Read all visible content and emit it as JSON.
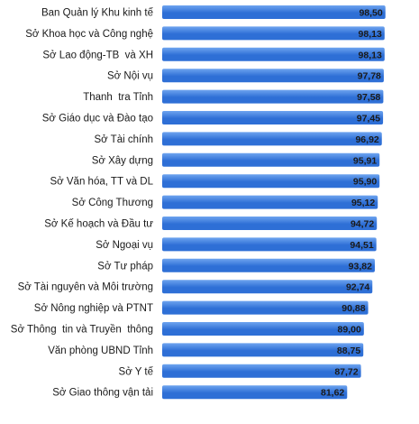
{
  "chart_data": {
    "type": "bar",
    "orientation": "horizontal",
    "categories": [
      "Ban Quản lý Khu kinh tế",
      "Sở Khoa học và Công nghệ",
      "Sở Lao động-TB  và XH",
      "Sở Nội vụ",
      "Thanh  tra Tỉnh",
      "Sở Giáo dục và Đào tạo",
      "Sở Tài chính",
      "Sở Xây dựng",
      "Sở Văn hóa, TT và DL",
      "Sở Công Thương",
      "Sở Kế hoạch và Đầu tư",
      "Sở Ngoại vụ",
      "Sở Tư pháp",
      "Sở Tài nguyên và Môi trường",
      "Sở Nông nghiệp và PTNT",
      "Sở Thông  tin và Truyền  thông",
      "Văn phòng UBND Tỉnh",
      "Sở Y tế",
      "Sở Giao thông vận tải"
    ],
    "values": [
      98.5,
      98.13,
      98.13,
      97.78,
      97.58,
      97.45,
      96.92,
      95.91,
      95.9,
      95.12,
      94.72,
      94.51,
      93.82,
      92.74,
      90.88,
      89.0,
      88.75,
      87.72,
      81.62
    ],
    "value_labels": [
      "98,50",
      "98,13",
      "98,13",
      "97,78",
      "97,58",
      "97,45",
      "96,92",
      "95,91",
      "95,90",
      "95,12",
      "94,72",
      "94,51",
      "93,82",
      "92,74",
      "90,88",
      "89,00",
      "88,75",
      "87,72",
      "81,62"
    ],
    "title": "",
    "xlabel": "",
    "ylabel": "",
    "xlim": [
      0,
      100
    ],
    "grid": false,
    "legend": "none",
    "bar_color": "#2e6fd6",
    "bar_highlight": "#6ea4ef"
  }
}
